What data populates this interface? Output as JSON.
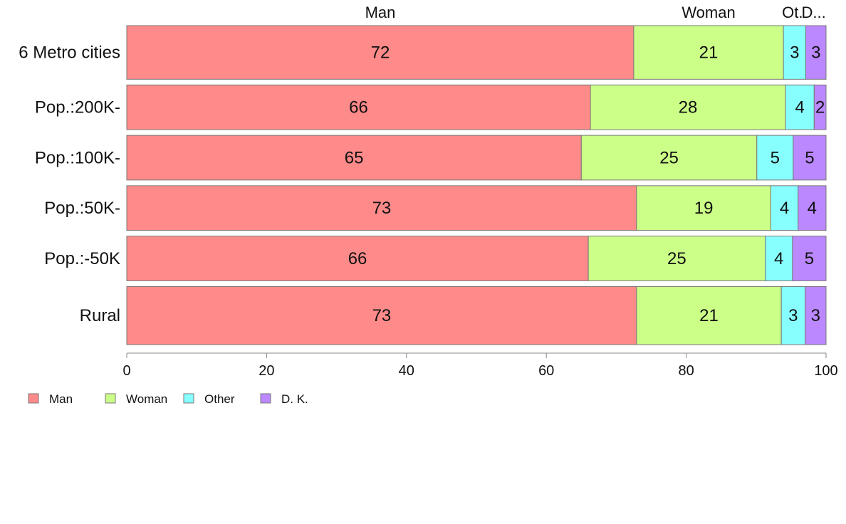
{
  "chart_data": {
    "type": "bar",
    "orientation": "horizontal",
    "stacked": true,
    "categories": [
      "6 Metro cities",
      "Pop.:200K-",
      "Pop.:100K-",
      "Pop.:50K-",
      "Pop.:-50K",
      "Rural"
    ],
    "category_weights": [
      1.2,
      1.0,
      1.0,
      1.0,
      1.0,
      1.3
    ],
    "series": [
      {
        "name": "Man",
        "color": "#ff8a8a",
        "values": [
          72.5,
          66.3,
          65.0,
          72.9,
          66.0,
          72.9
        ],
        "labels": [
          "72",
          "66",
          "65",
          "73",
          "66",
          "73"
        ]
      },
      {
        "name": "Woman",
        "color": "#ccff88",
        "values": [
          21.4,
          27.9,
          25.1,
          19.2,
          25.3,
          20.7
        ],
        "labels": [
          "21",
          "28",
          "25",
          "19",
          "25",
          "21"
        ]
      },
      {
        "name": "Other",
        "color": "#88ffff",
        "values": [
          3.2,
          4.1,
          5.2,
          3.9,
          3.9,
          3.4
        ],
        "labels": [
          "3",
          "4",
          "5",
          "4",
          "4",
          "3"
        ]
      },
      {
        "name": "D. K.",
        "color": "#bb88ff",
        "values": [
          2.9,
          1.7,
          4.7,
          4.0,
          4.8,
          3.0
        ],
        "labels": [
          "3",
          "2",
          "5",
          "4",
          "5",
          "3"
        ]
      }
    ],
    "top_labels": [
      "Man",
      "Woman",
      "Ot.",
      "D..."
    ],
    "xlim": [
      0,
      100
    ],
    "xticks": [
      0,
      20,
      40,
      60,
      80,
      100
    ],
    "xtick_labels": [
      "0",
      "20",
      "40",
      "60",
      "80",
      "100"
    ],
    "legend": {
      "placement": "bottom-left",
      "entries": [
        "Man",
        "Woman",
        "Other",
        "D. K."
      ]
    },
    "grid": false
  }
}
